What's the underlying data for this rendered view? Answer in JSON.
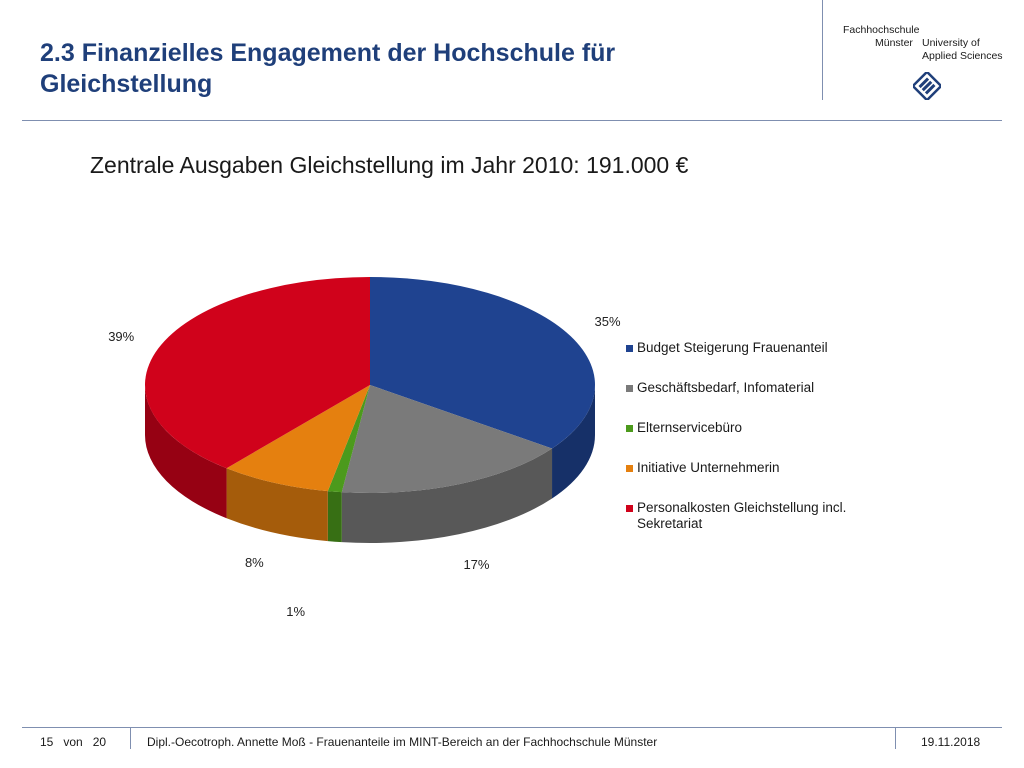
{
  "header": {
    "title_line1": "2.3 Finanzielles Engagement der Hochschule für",
    "title_line2": "Gleichstellung"
  },
  "logo": {
    "line1": "Fachhochschule",
    "line2a": "Münster",
    "line2b": "University of",
    "line3": "Applied Sciences",
    "mark_icon": "fh-muenster-logo-icon"
  },
  "colors": {
    "title": "#1f3f7a",
    "rule": "#7f8fb0"
  },
  "chart_data": {
    "type": "pie",
    "title": "Zentrale Ausgaben Gleichstellung im Jahr 2010: 191.000 €",
    "legend_position": "right",
    "series": [
      {
        "name": "Budget Steigerung Frauenanteil",
        "value": 35,
        "label": "35%",
        "color": "#1f4390"
      },
      {
        "name": "Geschäftsbedarf, Infomaterial",
        "value": 17,
        "label": "17%",
        "color": "#7a7a7a"
      },
      {
        "name": "Elternservicebüro",
        "value": 1,
        "label": "1%",
        "color": "#4c9a1c"
      },
      {
        "name": "Initiative Unternehmerin",
        "value": 8,
        "label": "8%",
        "color": "#e5800f"
      },
      {
        "name": "Personalkosten Gleichstellung incl. Sekretariat",
        "value": 39,
        "label": "39%",
        "color": "#d0021b"
      }
    ]
  },
  "footer": {
    "page_current": "15",
    "page_sep": "von",
    "page_total": "20",
    "text": "Dipl.-Oecotroph. Annette Moß - Frauenanteile im MINT-Bereich an der Fachhochschule Münster",
    "date": "19.11.2018"
  }
}
